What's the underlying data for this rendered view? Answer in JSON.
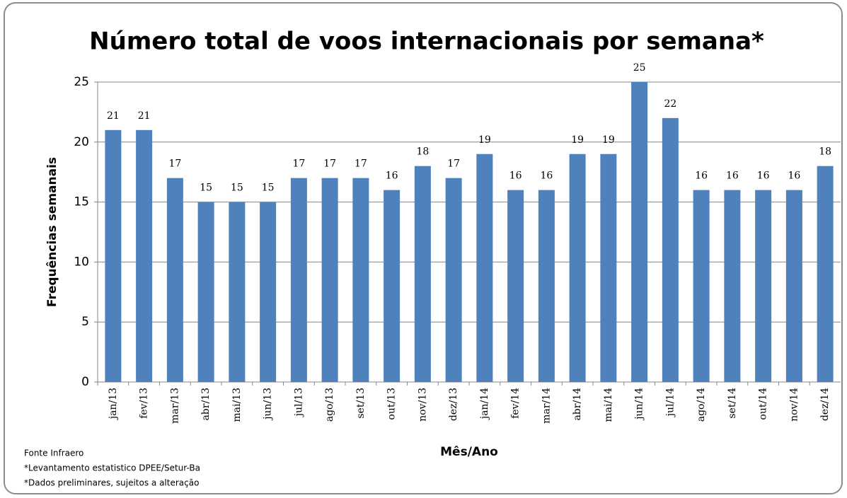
{
  "chart_data": {
    "type": "bar",
    "title": "Número  total de voos internacionais por semana*",
    "ylabel": "Frequências semanais",
    "xlabel": "Mês/Ano",
    "categories": [
      "jan/13",
      "fev/13",
      "mar/13",
      "abr/13",
      "mai/13",
      "jun/13",
      "jul/13",
      "ago/13",
      "set/13",
      "out/13",
      "nov/13",
      "dez/13",
      "jan/14",
      "fev/14",
      "mar/14",
      "abr/14",
      "mai/14",
      "jun/14",
      "jul/14",
      "ago/14",
      "set/14",
      "out/14",
      "nov/14",
      "dez/14"
    ],
    "values": [
      21,
      21,
      17,
      15,
      15,
      15,
      17,
      17,
      17,
      16,
      18,
      17,
      19,
      16,
      16,
      19,
      19,
      25,
      22,
      16,
      16,
      16,
      16,
      18
    ],
    "color": "#4f81bd",
    "ylim": [
      0,
      25
    ],
    "yticks": [
      0,
      5,
      10,
      15,
      20,
      25
    ],
    "grid": true,
    "notes": [
      "Fonte Infraero",
      "*Levantamento estatistico DPEE/Setur-Ba",
      "*Dados preliminares, sujeitos a alteração"
    ]
  }
}
